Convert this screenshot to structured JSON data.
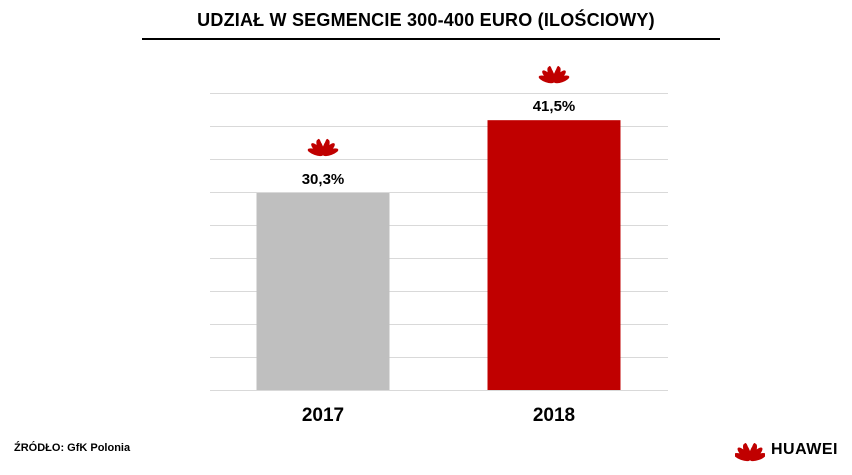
{
  "title": "UDZIAŁ W SEGMENCIE 300-400 EURO (ILOŚCIOWY)",
  "source": "ŹRÓDŁO: GfK Polonia",
  "brand": {
    "name": "HUAWEI",
    "logo_color": "#c00000",
    "icon": "huawei-logo-icon"
  },
  "chart_data": {
    "type": "bar",
    "title": "UDZIAŁ W SEGMENCIE 300-400 EURO (ILOŚCIOWY)",
    "categories": [
      "2017",
      "2018"
    ],
    "values": [
      30.3,
      41.5
    ],
    "value_labels": [
      "30,3%",
      "41,5%"
    ],
    "bar_colors": [
      "#bfbfbf",
      "#c00000"
    ],
    "gridline_color": "#d9d9d9",
    "grid": true,
    "ylim": [
      0,
      45
    ],
    "xlabel": "",
    "ylabel": ""
  }
}
